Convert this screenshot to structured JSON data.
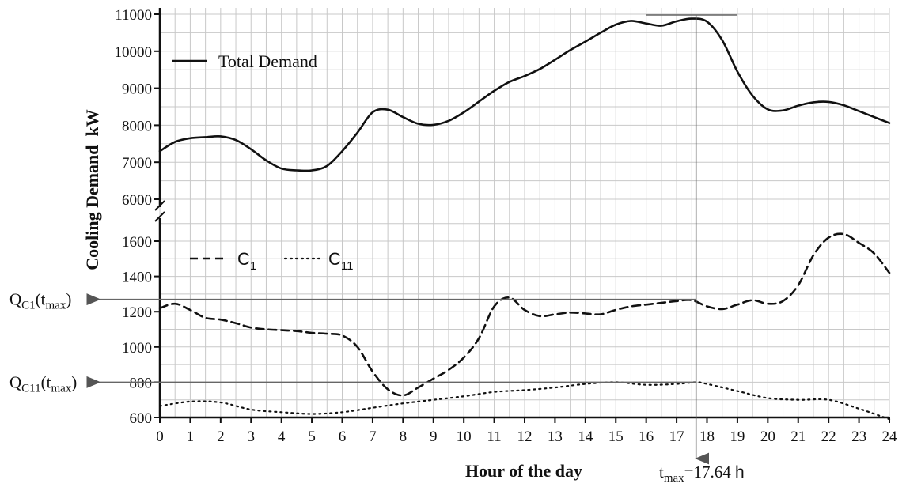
{
  "chart_data": {
    "type": "line",
    "xlabel": "Hour of the day",
    "ylabel": "Cooling Demand  kW",
    "xlim": [
      0,
      24
    ],
    "x_ticks": [
      0,
      1,
      2,
      3,
      4,
      5,
      6,
      7,
      8,
      9,
      10,
      11,
      12,
      13,
      14,
      15,
      16,
      17,
      18,
      19,
      20,
      21,
      22,
      23,
      24
    ],
    "axis_break": true,
    "upper_panel": {
      "ylim": [
        6000,
        11000
      ],
      "y_ticks": [
        6000,
        7000,
        8000,
        9000,
        10000,
        11000
      ]
    },
    "lower_panel": {
      "ylim": [
        600,
        1700
      ],
      "y_ticks": [
        600,
        800,
        1000,
        1200,
        1400,
        1600
      ]
    },
    "grid": true,
    "series": [
      {
        "name": "Total Demand",
        "panel": "upper",
        "style": "solid",
        "color": "#111111",
        "x": [
          0,
          0.5,
          1,
          1.5,
          2,
          2.5,
          3,
          3.5,
          4,
          4.5,
          5,
          5.5,
          6,
          6.5,
          7,
          7.5,
          8,
          8.5,
          9,
          9.5,
          10,
          10.5,
          11,
          11.5,
          12,
          12.5,
          13,
          13.5,
          14,
          14.5,
          15,
          15.5,
          16,
          16.5,
          17,
          17.5,
          18,
          18.5,
          19,
          19.5,
          20,
          20.5,
          21,
          21.5,
          22,
          22.5,
          23,
          23.5,
          24
        ],
        "values": [
          7300,
          7550,
          7650,
          7680,
          7700,
          7600,
          7350,
          7050,
          6830,
          6780,
          6780,
          6900,
          7300,
          7800,
          8350,
          8420,
          8220,
          8040,
          8010,
          8120,
          8350,
          8640,
          8930,
          9170,
          9330,
          9520,
          9770,
          10030,
          10260,
          10500,
          10720,
          10820,
          10750,
          10690,
          10810,
          10880,
          10800,
          10300,
          9450,
          8800,
          8430,
          8400,
          8530,
          8620,
          8630,
          8540,
          8380,
          8220,
          8060
        ]
      },
      {
        "name": "C1",
        "panel": "lower",
        "style": "dashed",
        "color": "#111111",
        "x": [
          0,
          0.5,
          1,
          1.5,
          2,
          2.5,
          3,
          3.5,
          4,
          4.5,
          5,
          5.5,
          6,
          6.5,
          7,
          7.5,
          8,
          8.5,
          9,
          9.5,
          10,
          10.5,
          11,
          11.5,
          12,
          12.5,
          13,
          13.5,
          14,
          14.5,
          15,
          15.5,
          16,
          16.5,
          17,
          17.5,
          18,
          18.5,
          19,
          19.5,
          20,
          20.5,
          21,
          21.5,
          22,
          22.5,
          23,
          23.5,
          24
        ],
        "values": [
          1220,
          1245,
          1210,
          1165,
          1155,
          1135,
          1110,
          1100,
          1095,
          1090,
          1080,
          1075,
          1065,
          1000,
          860,
          760,
          725,
          770,
          820,
          870,
          940,
          1050,
          1230,
          1280,
          1210,
          1175,
          1185,
          1195,
          1190,
          1185,
          1210,
          1230,
          1240,
          1250,
          1260,
          1265,
          1230,
          1215,
          1240,
          1265,
          1245,
          1260,
          1350,
          1520,
          1620,
          1640,
          1590,
          1530,
          1420
        ]
      },
      {
        "name": "C11",
        "panel": "lower",
        "style": "dotted",
        "color": "#111111",
        "x": [
          0,
          1,
          2,
          3,
          4,
          5,
          6,
          7,
          8,
          9,
          10,
          11,
          12,
          13,
          14,
          15,
          16,
          17,
          17.64,
          18,
          19,
          20,
          21,
          22,
          23,
          24
        ],
        "values": [
          665,
          690,
          685,
          645,
          630,
          620,
          630,
          655,
          680,
          700,
          720,
          745,
          755,
          770,
          790,
          800,
          785,
          790,
          800,
          790,
          750,
          710,
          700,
          700,
          650,
          590
        ]
      }
    ],
    "annotations": {
      "t_max_label": "t",
      "t_max_sub": "max",
      "t_max_value": "=17.64 ",
      "t_max_unit": "h",
      "t_max_x": 17.64,
      "q_c1_prefix": "Q",
      "q_c1_sub": "C1",
      "q_c1_arg": "(t",
      "q_c1_arg_sub": "max",
      "q_c1_close": ")",
      "q_c1_value": 1270,
      "q_c11_prefix": "Q",
      "q_c11_sub": "C11",
      "q_c11_arg": "(t",
      "q_c11_arg_sub": "max",
      "q_c11_close": ")",
      "q_c11_value": 800,
      "peak_line_x_range": [
        16,
        19
      ],
      "peak_value": 10920
    },
    "legend": [
      {
        "label": "Total Demand",
        "style": "solid",
        "position": "upper-left"
      },
      {
        "label_main": "C",
        "label_sub": "1",
        "style": "dashed",
        "position": "lower-left"
      },
      {
        "label_main": "C",
        "label_sub": "11",
        "style": "dotted",
        "position": "lower-left"
      }
    ]
  }
}
